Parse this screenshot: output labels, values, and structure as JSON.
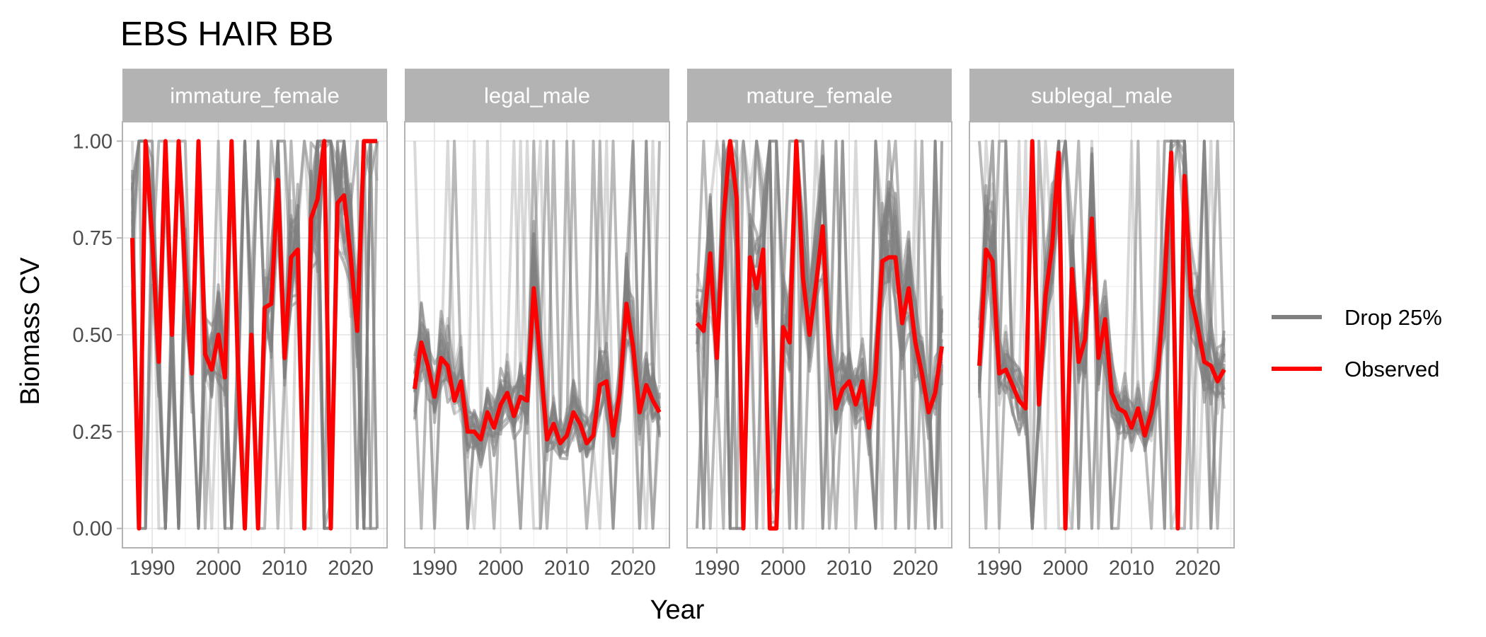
{
  "chart_data": {
    "type": "line",
    "title": "EBS HAIR BB",
    "xlabel": "Year",
    "ylabel": "Biomass CV",
    "xlim": [
      1985.5,
      2025.5
    ],
    "ylim": [
      -0.05,
      1.05
    ],
    "x_ticks": [
      1990,
      2000,
      2010,
      2020
    ],
    "x_tick_labels": [
      "1990",
      "2000",
      "2010",
      "2020"
    ],
    "y_ticks": [
      0,
      0.25,
      0.5,
      0.75,
      1
    ],
    "y_tick_labels": [
      "0.00",
      "0.25",
      "0.50",
      "0.75",
      "1.00"
    ],
    "grid": true,
    "facet_by": "group",
    "legend": {
      "position": "right",
      "items": [
        {
          "label": "Drop 25%",
          "color": "#808080"
        },
        {
          "label": "Observed",
          "color": "#ff0000"
        }
      ]
    },
    "colors": {
      "drop": "#808080",
      "observed": "#ff0000",
      "strip": "#b3b3b3"
    },
    "panels": [
      {
        "name": "immature_female",
        "observed": {
          "x": [
            1987,
            1988,
            1989,
            1990,
            1991,
            1992,
            1993,
            1994,
            1995,
            1996,
            1997,
            1998,
            1999,
            2000,
            2001,
            2002,
            2003,
            2004,
            2005,
            2006,
            2007,
            2008,
            2009,
            2010,
            2011,
            2012,
            2013,
            2014,
            2015,
            2016,
            2017,
            2018,
            2019,
            2020,
            2021,
            2022,
            2023,
            2024
          ],
          "y": [
            0.75,
            0.0,
            1.0,
            0.75,
            0.43,
            1.0,
            0.5,
            1.0,
            0.65,
            0.4,
            1.0,
            0.45,
            0.41,
            0.5,
            0.39,
            1.0,
            0.4,
            0.0,
            0.5,
            0.0,
            0.57,
            0.58,
            0.9,
            0.44,
            0.7,
            0.72,
            0.0,
            0.8,
            0.85,
            1.0,
            0.0,
            0.84,
            0.86,
            0.7,
            0.51,
            1.0,
            1.0,
            1.0
          ]
        }
      },
      {
        "name": "legal_male",
        "observed": {
          "x": [
            1987,
            1988,
            1989,
            1990,
            1991,
            1992,
            1993,
            1994,
            1995,
            1996,
            1997,
            1998,
            1999,
            2000,
            2001,
            2002,
            2003,
            2004,
            2005,
            2006,
            2007,
            2008,
            2009,
            2010,
            2011,
            2012,
            2013,
            2014,
            2015,
            2016,
            2017,
            2018,
            2019,
            2020,
            2021,
            2022,
            2023,
            2024
          ],
          "y": [
            0.36,
            0.48,
            0.42,
            0.34,
            0.44,
            0.42,
            0.33,
            0.38,
            0.25,
            0.25,
            0.23,
            0.3,
            0.26,
            0.32,
            0.35,
            0.29,
            0.34,
            0.33,
            0.62,
            0.43,
            0.23,
            0.27,
            0.22,
            0.24,
            0.3,
            0.27,
            0.22,
            0.24,
            0.37,
            0.38,
            0.24,
            0.35,
            0.58,
            0.47,
            0.3,
            0.37,
            0.33,
            0.3
          ]
        }
      },
      {
        "name": "mature_female",
        "observed": {
          "x": [
            1987,
            1988,
            1989,
            1990,
            1991,
            1992,
            1993,
            1994,
            1995,
            1996,
            1997,
            1998,
            1999,
            2000,
            2001,
            2002,
            2003,
            2004,
            2005,
            2006,
            2007,
            2008,
            2009,
            2010,
            2011,
            2012,
            2013,
            2014,
            2015,
            2016,
            2017,
            2018,
            2019,
            2020,
            2021,
            2022,
            2023,
            2024
          ],
          "y": [
            0.53,
            0.51,
            0.71,
            0.44,
            0.8,
            1.0,
            0.85,
            0.0,
            0.7,
            0.62,
            0.72,
            0.0,
            0.0,
            0.52,
            0.48,
            1.0,
            0.65,
            0.5,
            0.63,
            0.78,
            0.45,
            0.31,
            0.36,
            0.38,
            0.32,
            0.38,
            0.26,
            0.4,
            0.69,
            0.7,
            0.7,
            0.53,
            0.62,
            0.48,
            0.4,
            0.3,
            0.35,
            0.47
          ]
        }
      },
      {
        "name": "sublegal_male",
        "observed": {
          "x": [
            1987,
            1988,
            1989,
            1990,
            1991,
            1992,
            1993,
            1994,
            1995,
            1996,
            1997,
            1998,
            1999,
            2000,
            2001,
            2002,
            2003,
            2004,
            2005,
            2006,
            2007,
            2008,
            2009,
            2010,
            2011,
            2012,
            2013,
            2014,
            2015,
            2016,
            2017,
            2018,
            2019,
            2020,
            2021,
            2022,
            2023,
            2024
          ],
          "y": [
            0.42,
            0.72,
            0.69,
            0.4,
            0.41,
            0.37,
            0.33,
            0.31,
            1.0,
            0.32,
            0.6,
            0.73,
            0.97,
            0.0,
            0.67,
            0.43,
            0.49,
            0.8,
            0.44,
            0.54,
            0.35,
            0.31,
            0.3,
            0.26,
            0.31,
            0.24,
            0.3,
            0.41,
            0.63,
            0.97,
            0.0,
            0.91,
            0.6,
            0.52,
            0.43,
            0.42,
            0.38,
            0.41
          ]
        }
      }
    ]
  }
}
